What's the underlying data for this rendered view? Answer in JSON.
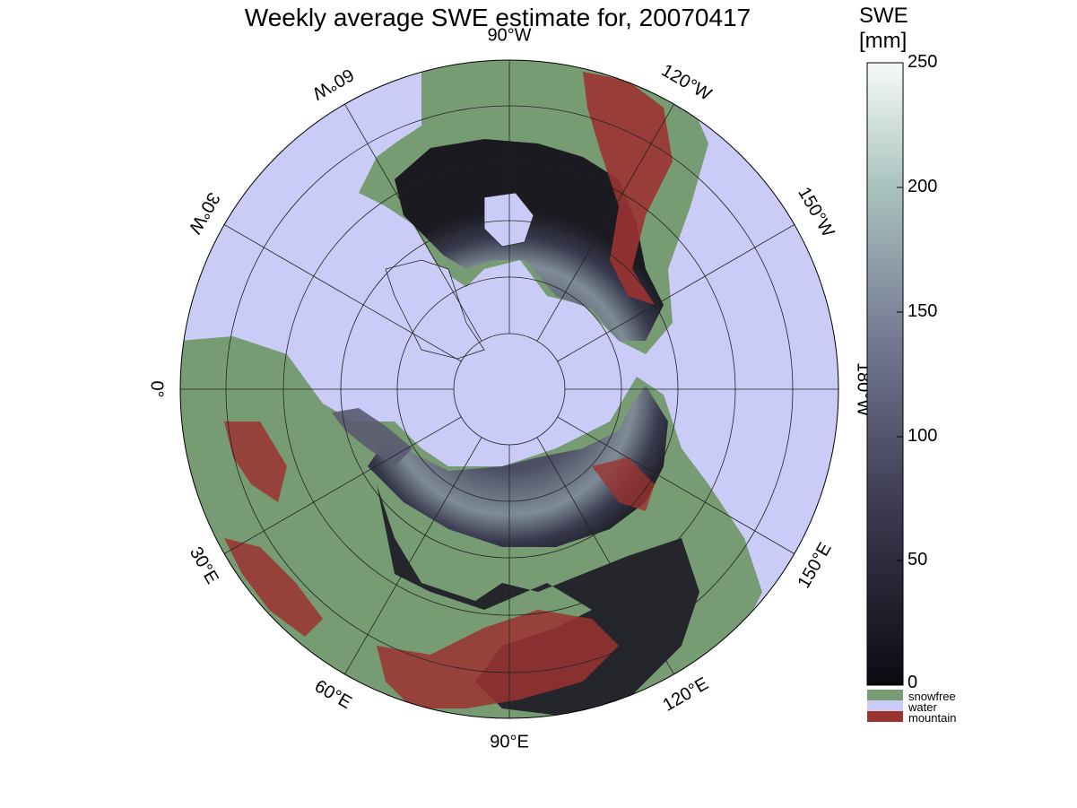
{
  "title": "Weekly average SWE estimate for, 20070417",
  "longitude_labels": [
    "90°W",
    "120°W",
    "150°W",
    "180°W",
    "150°E",
    "120°E",
    "90°E",
    "60°E",
    "30°E",
    "0°",
    "30°W",
    "60°W"
  ],
  "colorbar": {
    "title_line1": "SWE",
    "title_line2": "[mm]",
    "ticks": [
      "250",
      "200",
      "150",
      "100",
      "50",
      "0"
    ],
    "range": [
      0,
      250
    ],
    "categories": [
      {
        "label": "snowfree",
        "color": "#779c73"
      },
      {
        "label": "water",
        "color": "#cbcbf7"
      },
      {
        "label": "mountain",
        "color": "#9b3331"
      }
    ]
  },
  "colors": {
    "ocean": "#cbcbf7",
    "land_snowfree": "#779c73",
    "mountain": "#9b3331",
    "swe_low": "#0c0a10",
    "swe_high": "#f6faf8"
  }
}
